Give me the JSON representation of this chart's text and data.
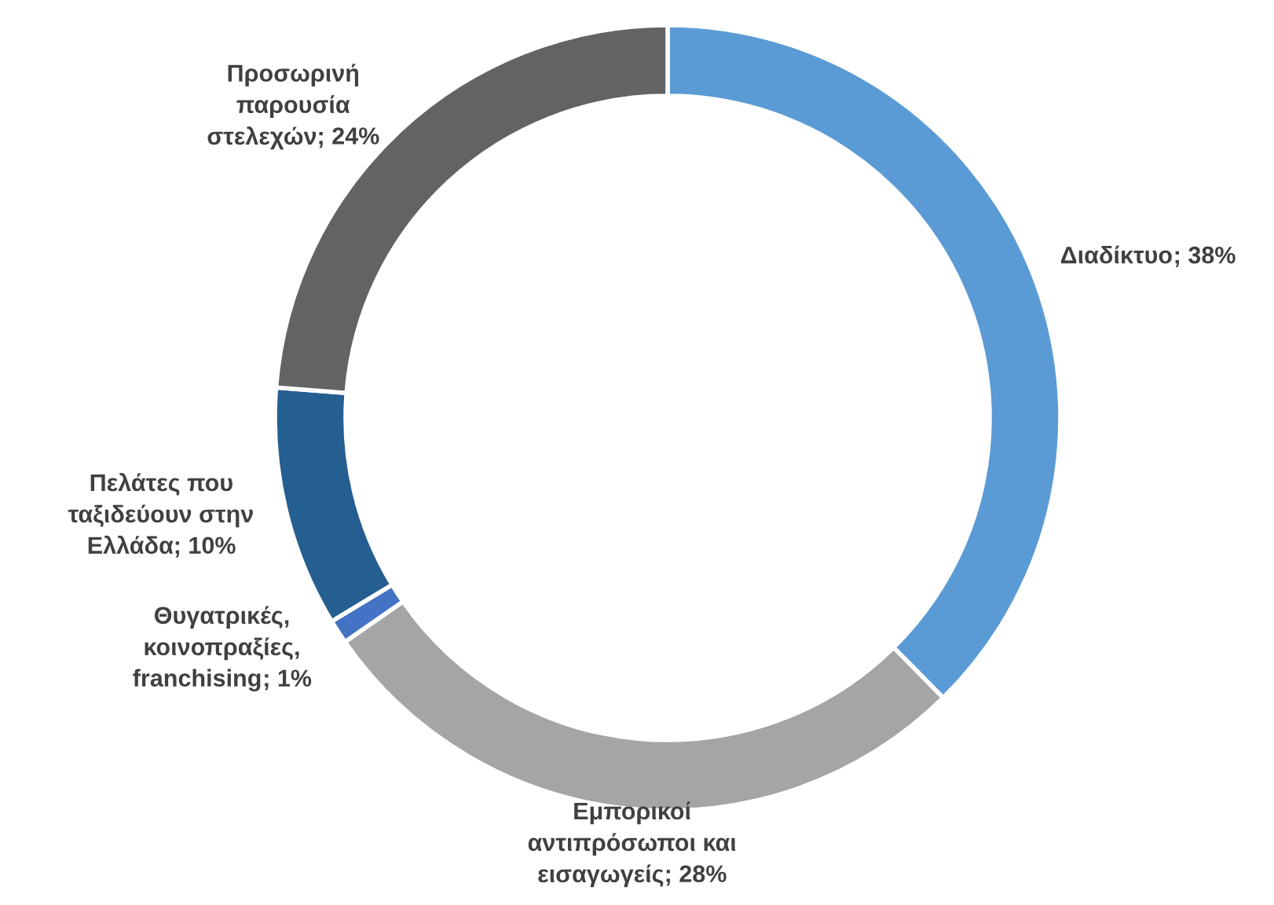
{
  "chart_data": {
    "type": "donut",
    "categories": [
      "Διαδίκτυο",
      "Εμπορικοί αντιπρόσωποι και εισαγωγείς",
      "Θυγατρικές, κοινοπραξίες, franchising",
      "Πελάτες που ταξιδεύουν στην Ελλάδα",
      "Προσωρινή παρουσία στελεχών"
    ],
    "values": [
      38,
      28,
      1,
      10,
      24
    ],
    "value_labels": [
      "; 38%",
      "; 28%",
      "; 1%",
      "; 10%",
      "; 24%"
    ],
    "colors": [
      "#5b9bd5",
      "#a5a5a5",
      "#4472c4",
      "#255e91",
      "#636363"
    ],
    "data_labels": true,
    "legend": false
  }
}
